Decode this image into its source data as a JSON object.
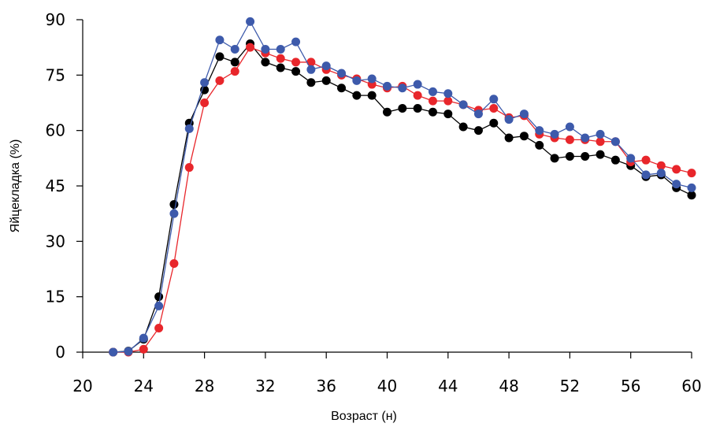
{
  "chart_data": {
    "type": "line",
    "xlabel": "Возраст (н)",
    "ylabel": "Яйцекладка (%)",
    "xlim": [
      20,
      60
    ],
    "ylim": [
      0,
      90
    ],
    "xticks": [
      "20",
      "24",
      "28",
      "32",
      "36",
      "40",
      "44",
      "48",
      "52",
      "56",
      "60"
    ],
    "yticks": [
      "0",
      "15",
      "30",
      "45",
      "60",
      "75",
      "90"
    ],
    "grid": false,
    "legend": "none",
    "x": [
      22,
      23,
      24,
      25,
      26,
      27,
      28,
      29,
      30,
      31,
      32,
      33,
      34,
      35,
      36,
      37,
      38,
      39,
      40,
      41,
      42,
      43,
      44,
      45,
      46,
      47,
      48,
      49,
      50,
      51,
      52,
      53,
      54,
      55,
      56,
      57,
      58,
      59,
      60
    ],
    "series": [
      {
        "color": "#000000",
        "values": [
          0,
          0.3,
          3.5,
          15,
          40,
          62,
          71,
          80,
          78.5,
          83.5,
          78.5,
          77,
          76,
          73,
          73.5,
          71.5,
          69.5,
          69.5,
          65,
          66,
          66,
          65,
          64.5,
          61,
          60,
          62,
          58,
          58.5,
          56,
          52.5,
          53,
          53,
          53.5,
          52,
          50.5,
          47.5,
          48,
          44.5,
          42.5
        ]
      },
      {
        "color": "#e8262b",
        "values": [
          0,
          0,
          0.8,
          6.5,
          24,
          50,
          67.5,
          73.5,
          76,
          82.5,
          81,
          79.5,
          78.5,
          78.5,
          76.5,
          75,
          74,
          72.5,
          71.5,
          72,
          69.5,
          68,
          68,
          67,
          65.5,
          66,
          63.5,
          64,
          59,
          58,
          57.5,
          57.5,
          57,
          57,
          51.5,
          52,
          50.5,
          49.5,
          48.5
        ]
      },
      {
        "color": "#3d5aab",
        "values": [
          0,
          0.2,
          3.8,
          12.5,
          37.5,
          60.5,
          73,
          84.5,
          82,
          89.5,
          82,
          82,
          84,
          76.5,
          77.5,
          75.5,
          73.5,
          74,
          72,
          71.5,
          72.5,
          70.5,
          70,
          67,
          64.5,
          68.5,
          63,
          64.5,
          60,
          59,
          61,
          58,
          59,
          57,
          52.5,
          48,
          48.5,
          45.5,
          44.5
        ]
      }
    ]
  }
}
